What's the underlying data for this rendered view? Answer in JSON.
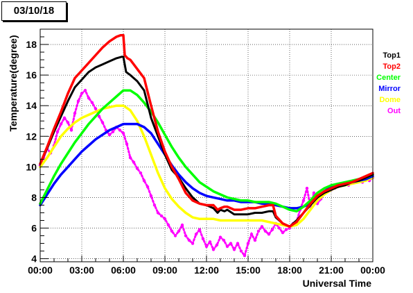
{
  "title": "03/10/18",
  "chart_data": {
    "type": "line",
    "xlabel": "Universal Time",
    "ylabel": "Temperature(degree)",
    "xlim": [
      0,
      24
    ],
    "ylim": [
      3.8,
      19.0
    ],
    "x_ticks": [
      0,
      3,
      6,
      9,
      12,
      15,
      18,
      21,
      24
    ],
    "x_tick_labels": [
      "00:00",
      "03:00",
      "06:00",
      "09:00",
      "12:00",
      "15:00",
      "18:00",
      "21:00",
      "00:00"
    ],
    "y_ticks": [
      4,
      6,
      8,
      10,
      12,
      14,
      16,
      18
    ],
    "grid": true,
    "legend_position": "right",
    "series": [
      {
        "name": "Top1",
        "color": "#000000",
        "x": [
          0,
          0.5,
          1,
          1.5,
          2,
          2.5,
          3,
          3.5,
          4,
          4.5,
          5,
          5.5,
          5.9,
          6.0,
          6.2,
          6.5,
          7,
          7.5,
          8,
          8.5,
          9,
          9.5,
          10,
          10.5,
          11,
          11.5,
          12,
          12.5,
          12.8,
          13,
          13.3,
          13.5,
          14,
          14.5,
          15,
          15.5,
          16,
          16.5,
          16.8,
          17,
          17.5,
          18,
          18.5,
          19,
          19.5,
          20,
          20.5,
          21,
          21.5,
          22,
          22.5,
          23,
          23.5,
          24
        ],
        "y": [
          10.2,
          11.2,
          12.3,
          13.3,
          14.3,
          15.2,
          15.7,
          16.2,
          16.5,
          16.7,
          16.9,
          17.1,
          17.2,
          17.2,
          16.2,
          16.0,
          15.6,
          15.0,
          13.2,
          12.0,
          10.8,
          9.8,
          9.3,
          8.6,
          8.0,
          7.6,
          7.5,
          7.3,
          7.0,
          7.2,
          7.1,
          7.2,
          6.9,
          6.9,
          6.9,
          7.0,
          7.0,
          7.1,
          7.1,
          6.7,
          6.3,
          6.1,
          6.5,
          7.0,
          7.5,
          8.0,
          8.3,
          8.5,
          8.7,
          8.8,
          9.0,
          9.1,
          9.3,
          9.5
        ]
      },
      {
        "name": "Top2",
        "color": "#ff0000",
        "x": [
          0,
          0.5,
          1,
          1.5,
          2,
          2.5,
          3,
          3.5,
          4,
          4.5,
          5,
          5.5,
          5.8,
          6.0,
          6.1,
          6.3,
          6.5,
          7,
          7.5,
          8,
          8.5,
          9,
          9.5,
          10,
          10.5,
          11,
          11.5,
          12,
          12.5,
          12.8,
          13,
          13.3,
          13.5,
          14,
          14.5,
          15,
          15.5,
          16,
          16.5,
          16.8,
          17,
          17.5,
          18,
          18.5,
          19,
          19.5,
          20,
          20.5,
          21,
          21.5,
          22,
          22.5,
          23,
          23.5,
          24
        ],
        "y": [
          10.2,
          11.3,
          12.5,
          13.6,
          14.8,
          15.8,
          16.3,
          16.8,
          17.3,
          17.8,
          18.2,
          18.5,
          18.6,
          18.6,
          17.3,
          17.1,
          17.0,
          16.4,
          15.8,
          14.0,
          12.3,
          11.0,
          10.0,
          9.2,
          8.3,
          7.8,
          7.6,
          7.5,
          7.5,
          7.2,
          7.3,
          7.4,
          7.4,
          7.2,
          7.2,
          7.3,
          7.3,
          7.4,
          7.5,
          7.5,
          6.8,
          6.3,
          6.1,
          6.4,
          7.0,
          7.6,
          8.1,
          8.4,
          8.6,
          8.8,
          8.9,
          9.0,
          9.2,
          9.4,
          9.6
        ]
      },
      {
        "name": "Center",
        "color": "#00ff00",
        "x": [
          0,
          0.5,
          1,
          1.5,
          2,
          2.5,
          3,
          3.5,
          4,
          4.5,
          5,
          5.5,
          6,
          6.5,
          7,
          7.5,
          8,
          8.5,
          9,
          9.5,
          10,
          10.5,
          11,
          11.5,
          12,
          12.5,
          13,
          13.5,
          14,
          14.5,
          15,
          15.5,
          16,
          16.5,
          17,
          17.5,
          18,
          18.5,
          19,
          19.5,
          20,
          20.5,
          21,
          21.5,
          22,
          22.5,
          23,
          23.5,
          24
        ],
        "y": [
          7.6,
          8.5,
          9.4,
          10.2,
          10.9,
          11.6,
          12.2,
          12.8,
          13.3,
          13.8,
          14.2,
          14.6,
          15.0,
          15.0,
          14.7,
          14.2,
          13.6,
          12.9,
          12.1,
          11.3,
          10.6,
          10.0,
          9.5,
          9.0,
          8.7,
          8.4,
          8.2,
          8.0,
          7.9,
          7.8,
          7.8,
          7.7,
          7.7,
          7.7,
          7.6,
          7.4,
          7.2,
          7.1,
          7.4,
          7.8,
          8.3,
          8.6,
          8.8,
          8.9,
          9.0,
          9.1,
          9.2,
          9.3,
          9.5
        ]
      },
      {
        "name": "Mirror",
        "color": "#0000ff",
        "x": [
          0,
          0.5,
          1,
          1.5,
          2,
          2.5,
          3,
          3.5,
          4,
          4.5,
          5,
          5.5,
          6,
          6.5,
          7,
          7.5,
          8,
          8.5,
          9,
          9.5,
          10,
          10.5,
          11,
          11.5,
          12,
          12.5,
          13,
          13.5,
          14,
          14.5,
          15,
          15.5,
          16,
          16.5,
          17,
          17.5,
          18,
          18.5,
          19,
          19.5,
          20,
          20.5,
          21,
          21.5,
          22,
          22.5,
          23,
          23.5,
          24
        ],
        "y": [
          7.5,
          8.2,
          8.9,
          9.5,
          10.0,
          10.5,
          11.0,
          11.4,
          11.8,
          12.1,
          12.4,
          12.6,
          12.8,
          12.8,
          12.8,
          12.6,
          12.2,
          11.5,
          10.8,
          10.1,
          9.5,
          9.0,
          8.6,
          8.3,
          8.1,
          8.0,
          7.9,
          7.8,
          7.8,
          7.7,
          7.7,
          7.7,
          7.6,
          7.6,
          7.5,
          7.4,
          7.3,
          7.3,
          7.4,
          7.6,
          8.0,
          8.4,
          8.7,
          8.8,
          8.9,
          9.0,
          9.1,
          9.2,
          9.4
        ]
      },
      {
        "name": "Dome",
        "color": "#ffff00",
        "x": [
          0,
          0.5,
          1,
          1.5,
          2,
          2.5,
          3,
          3.5,
          4,
          4.5,
          5,
          5.5,
          6,
          6.5,
          7,
          7.5,
          8,
          8.5,
          9,
          9.5,
          10,
          10.5,
          11,
          11.5,
          12,
          12.5,
          13,
          13.5,
          14,
          14.5,
          15,
          15.5,
          16,
          16.5,
          17,
          17.5,
          18,
          18.5,
          19,
          19.5,
          20,
          20.5,
          21,
          21.5,
          22,
          22.5,
          23,
          23.5,
          24
        ],
        "y": [
          10.0,
          10.6,
          11.3,
          12.0,
          12.5,
          12.9,
          13.2,
          13.4,
          13.6,
          13.8,
          13.9,
          14.0,
          14.0,
          13.7,
          13.0,
          12.0,
          10.8,
          9.6,
          8.6,
          7.9,
          7.4,
          7.0,
          6.7,
          6.6,
          6.6,
          6.6,
          6.5,
          6.5,
          6.5,
          6.5,
          6.5,
          6.5,
          6.5,
          6.4,
          6.3,
          6.2,
          6.1,
          6.2,
          6.6,
          7.2,
          7.8,
          8.2,
          8.5,
          8.7,
          8.8,
          8.9,
          9.0,
          9.1,
          9.3
        ]
      },
      {
        "name": "Out",
        "color": "#ff00ff",
        "x": [
          0,
          0.25,
          0.5,
          0.75,
          1,
          1.25,
          1.5,
          1.75,
          2,
          2.25,
          2.5,
          2.75,
          3,
          3.25,
          3.5,
          3.75,
          4,
          4.25,
          4.5,
          4.75,
          5,
          5.25,
          5.5,
          5.75,
          6,
          6.25,
          6.5,
          6.75,
          7,
          7.25,
          7.5,
          7.75,
          8,
          8.25,
          8.5,
          8.75,
          9,
          9.25,
          9.5,
          9.75,
          10,
          10.25,
          10.5,
          10.75,
          11,
          11.25,
          11.5,
          11.75,
          12,
          12.25,
          12.5,
          12.75,
          13,
          13.25,
          13.5,
          13.75,
          14,
          14.25,
          14.5,
          14.75,
          15,
          15.25,
          15.5,
          15.75,
          16,
          16.25,
          16.5,
          16.75,
          17,
          17.25,
          17.5,
          17.75,
          18,
          18.25,
          18.5,
          18.75,
          19,
          19.25,
          19.5,
          19.75,
          20,
          20.25,
          20.5,
          20.75,
          21,
          21.25,
          21.5,
          21.75,
          22,
          22.25,
          22.5,
          22.75,
          23,
          23.25,
          23.5,
          23.75,
          24
        ],
        "y": [
          10.1,
          10.6,
          11.2,
          10.9,
          11.4,
          12.3,
          12.8,
          13.2,
          12.9,
          12.4,
          13.5,
          14.3,
          14.8,
          15.0,
          14.5,
          14.2,
          13.8,
          13.3,
          12.9,
          12.4,
          12.1,
          12.3,
          12.6,
          12.4,
          12.2,
          11.5,
          10.6,
          10.3,
          9.9,
          9.6,
          9.1,
          8.7,
          8.1,
          7.5,
          7.0,
          6.8,
          6.6,
          6.2,
          5.8,
          5.5,
          5.8,
          6.2,
          5.5,
          5.2,
          5.0,
          5.6,
          5.9,
          5.3,
          4.8,
          5.1,
          4.6,
          4.9,
          5.4,
          5.2,
          4.8,
          5.0,
          4.6,
          5.0,
          4.5,
          4.2,
          5.0,
          5.6,
          5.2,
          5.8,
          6.1,
          5.8,
          5.6,
          5.9,
          6.3,
          6.0,
          5.7,
          5.9,
          6.0,
          6.3,
          6.4,
          7.2,
          7.8,
          8.6,
          7.4,
          8.3,
          7.6,
          7.9,
          8.3,
          8.4,
          8.5,
          8.6,
          8.7,
          8.8,
          8.9,
          8.8,
          9.0,
          9.0,
          9.1,
          9.0,
          9.2,
          9.1,
          9.3
        ]
      }
    ]
  }
}
